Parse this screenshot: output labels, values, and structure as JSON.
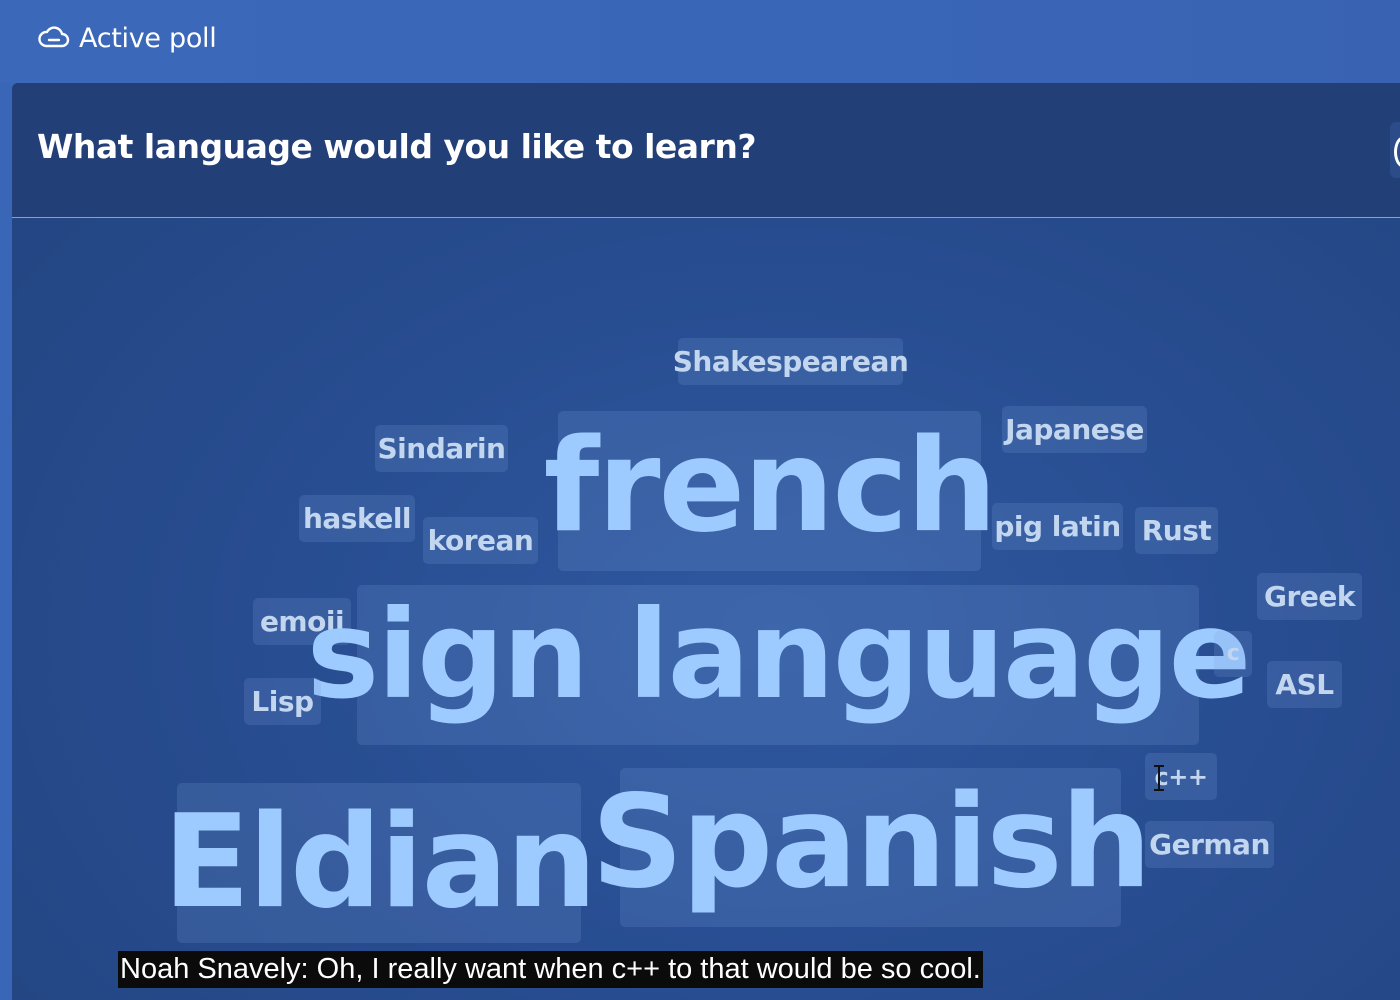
{
  "topbar": {
    "status_label": "Active poll",
    "icon": "cloud-icon"
  },
  "poll": {
    "question": "What language would you like to learn?"
  },
  "word_cloud": {
    "shakespearean": "Shakespearean",
    "sindarin": "Sindarin",
    "french": "french",
    "japanese": "Japanese",
    "haskell": "haskell",
    "korean": "korean",
    "pig_latin": "pig latin",
    "rust": "Rust",
    "greek": "Greek",
    "emoji": "emoji",
    "sign_language": "sign language",
    "c": "c",
    "asl": "ASL",
    "lisp": "Lisp",
    "cpp": "c++",
    "eldian": "Eldian",
    "spanish": "Spanish",
    "german": "German"
  },
  "caption": {
    "text": "Noah Snavely: Oh, I really want when c++ to that would be so cool."
  },
  "colors": {
    "topbar_bg": "#3a66b8",
    "panel_header_bg": "#233f78",
    "word_text": "#9ecbff",
    "word_chip_bg": "#4f77b3"
  }
}
